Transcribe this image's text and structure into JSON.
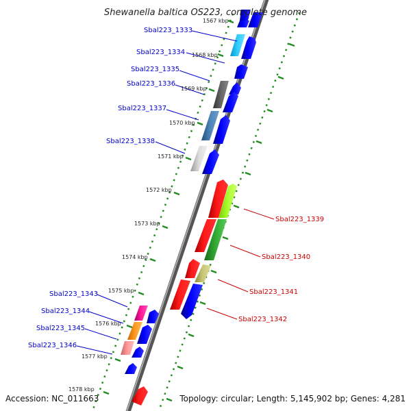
{
  "title": "Shewanella baltica OS223, complete genome",
  "accession": "Accession: NC_011663",
  "topology": "Topology: circular; Length: 5,145,902 bp; Genes: 4,281",
  "kbp_ticks": [
    "1567 kbp",
    "1568 kbp",
    "1569 kbp",
    "1570 kbp",
    "1571 kbp",
    "1572 kbp",
    "1573 kbp",
    "1574 kbp",
    "1575 kbp",
    "1576 kbp",
    "1577 kbp",
    "1578 kbp"
  ],
  "gene_labels_left": [
    "Sbal223_1333",
    "Sbal223_1334",
    "Sbal223_1335",
    "Sbal223_1336",
    "Sbal223_1337",
    "Sbal223_1338",
    "Sbal223_1343",
    "Sbal223_1344",
    "Sbal223_1345",
    "Sbal223_1346"
  ],
  "gene_labels_right": [
    "Sbal223_1339",
    "Sbal223_1340",
    "Sbal223_1341",
    "Sbal223_1342"
  ],
  "colors": {
    "backbone": "#888888",
    "dots": "#228b22",
    "blue_label": "#0000cc",
    "red_label": "#cc0000"
  }
}
